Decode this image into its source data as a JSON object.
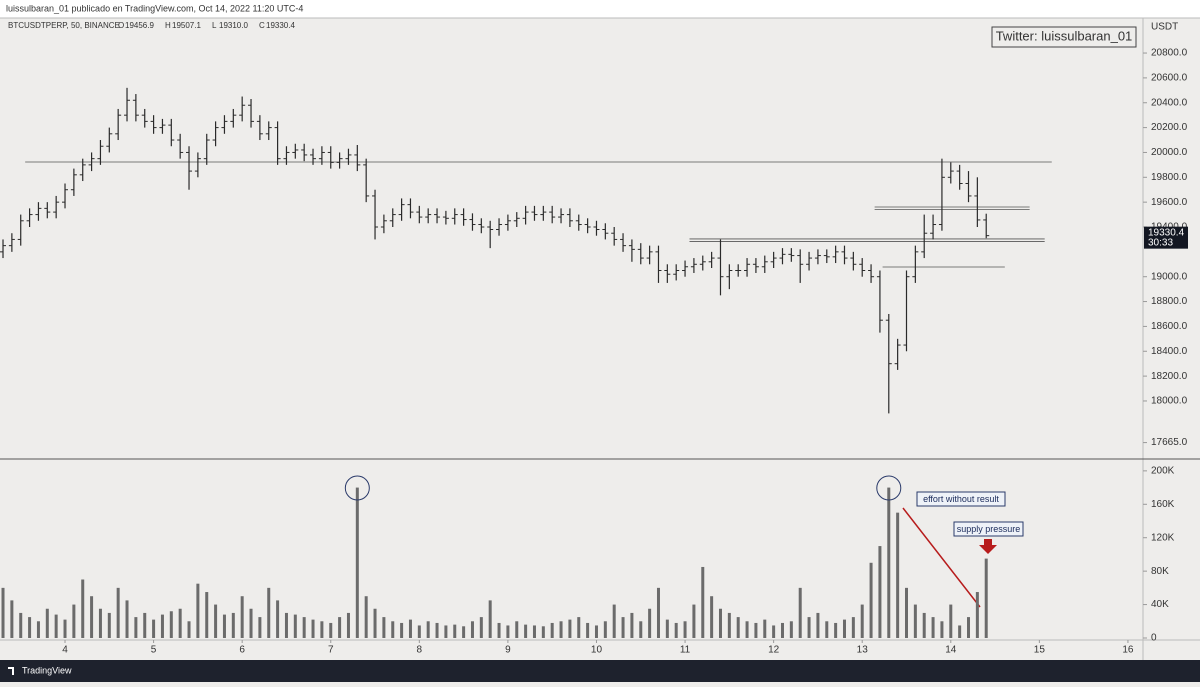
{
  "header": {
    "title": "luissulbaran_01 publicado en TradingView.com, Oct 14, 2022 11:20 UTC-4"
  },
  "footer": {
    "brand": "TradingView"
  },
  "chart_data": {
    "type": "ohlc",
    "symbol": "BTCUSDTPERP, 50, BINANCE",
    "ohlc_legend": [
      {
        "key": "O",
        "value": "19456.9"
      },
      {
        "key": "H",
        "value": "19507.1"
      },
      {
        "key": "L",
        "value": "19310.0"
      },
      {
        "key": "C",
        "value": "19330.4"
      }
    ],
    "watermark": "Twitter: luissulbaran_01",
    "currency": "USDT",
    "last_price_label": "19330.4",
    "countdown": "30:33",
    "bar_color": "#2a2a2a",
    "volume_color": "#6b6b6b",
    "x": [
      3.3,
      3.4,
      3.5,
      3.6,
      3.7,
      3.8,
      3.9,
      4.0,
      4.1,
      4.2,
      4.3,
      4.4,
      4.5,
      4.6,
      4.7,
      4.8,
      4.9,
      5.0,
      5.1,
      5.2,
      5.3,
      5.4,
      5.5,
      5.6,
      5.7,
      5.8,
      5.9,
      6.0,
      6.1,
      6.2,
      6.3,
      6.4,
      6.5,
      6.6,
      6.7,
      6.8,
      6.9,
      7.0,
      7.1,
      7.2,
      7.3,
      7.4,
      7.5,
      7.6,
      7.7,
      7.8,
      7.9,
      8.0,
      8.1,
      8.2,
      8.3,
      8.4,
      8.5,
      8.6,
      8.7,
      8.8,
      8.9,
      9.0,
      9.1,
      9.2,
      9.3,
      9.4,
      9.5,
      9.6,
      9.7,
      9.8,
      9.9,
      10.0,
      10.1,
      10.2,
      10.3,
      10.4,
      10.5,
      10.6,
      10.7,
      10.8,
      10.9,
      11.0,
      11.1,
      11.2,
      11.3,
      11.4,
      11.5,
      11.6,
      11.7,
      11.8,
      11.9,
      12.0,
      12.1,
      12.2,
      12.3,
      12.4,
      12.5,
      12.6,
      12.7,
      12.8,
      12.9,
      13.0,
      13.1,
      13.2,
      13.3,
      13.4,
      13.5,
      13.6,
      13.7,
      13.8,
      13.9,
      14.0,
      14.1,
      14.2,
      14.3,
      14.4
    ],
    "open": [
      19200,
      19250,
      19300,
      19450,
      19500,
      19550,
      19520,
      19600,
      19700,
      19820,
      19900,
      19950,
      20050,
      20150,
      20300,
      20420,
      20300,
      20250,
      20200,
      20220,
      20100,
      20000,
      19850,
      19950,
      20100,
      20200,
      20250,
      20300,
      20380,
      20250,
      20150,
      20200,
      19950,
      20000,
      20020,
      19980,
      19950,
      20000,
      19920,
      19950,
      19980,
      19900,
      19650,
      19400,
      19450,
      19500,
      19580,
      19520,
      19480,
      19500,
      19480,
      19470,
      19500,
      19460,
      19420,
      19400,
      19380,
      19420,
      19450,
      19470,
      19520,
      19500,
      19520,
      19480,
      19500,
      19450,
      19420,
      19400,
      19380,
      19350,
      19300,
      19250,
      19220,
      19150,
      19200,
      19050,
      19020,
      19050,
      19080,
      19100,
      19120,
      19150,
      19000,
      19050,
      19050,
      19100,
      19080,
      19120,
      19150,
      19180,
      19170,
      19100,
      19150,
      19170,
      19160,
      19200,
      19150,
      19100,
      19050,
      19000,
      18650,
      18300,
      18450,
      19000,
      19200,
      19350,
      19420,
      19800,
      19850,
      19750,
      19650,
      19456.9
    ],
    "high": [
      19300,
      19350,
      19500,
      19550,
      19600,
      19600,
      19650,
      19750,
      19870,
      19950,
      20000,
      20100,
      20200,
      20350,
      20520,
      20470,
      20350,
      20300,
      20270,
      20270,
      20150,
      20050,
      20000,
      20150,
      20250,
      20300,
      20350,
      20450,
      20430,
      20300,
      20250,
      20250,
      20050,
      20070,
      20070,
      20030,
      20050,
      20050,
      20000,
      20030,
      20060,
      19950,
      19700,
      19500,
      19550,
      19630,
      19630,
      19570,
      19550,
      19550,
      19530,
      19550,
      19550,
      19510,
      19470,
      19450,
      19470,
      19500,
      19520,
      19570,
      19570,
      19570,
      19570,
      19550,
      19550,
      19500,
      19470,
      19450,
      19430,
      19400,
      19350,
      19300,
      19270,
      19250,
      19250,
      19100,
      19100,
      19130,
      19150,
      19170,
      19200,
      19300,
      19100,
      19100,
      19150,
      19150,
      19170,
      19200,
      19230,
      19230,
      19220,
      19200,
      19220,
      19220,
      19250,
      19250,
      19200,
      19150,
      19100,
      19050,
      18700,
      18500,
      19050,
      19250,
      19500,
      19500,
      19950,
      19920,
      19900,
      19850,
      19800,
      19507.1
    ],
    "low": [
      19150,
      19200,
      19250,
      19400,
      19450,
      19470,
      19470,
      19550,
      19650,
      19770,
      19850,
      19900,
      20000,
      20100,
      20250,
      20250,
      20200,
      20150,
      20150,
      20050,
      19950,
      19700,
      19800,
      19900,
      20050,
      20150,
      20200,
      20250,
      20200,
      20100,
      20100,
      19900,
      19900,
      19950,
      19930,
      19900,
      19900,
      19870,
      19870,
      19900,
      19850,
      19600,
      19300,
      19350,
      19400,
      19450,
      19470,
      19430,
      19430,
      19430,
      19420,
      19420,
      19410,
      19370,
      19350,
      19230,
      19330,
      19370,
      19400,
      19420,
      19450,
      19450,
      19430,
      19430,
      19400,
      19370,
      19350,
      19330,
      19300,
      19250,
      19200,
      19120,
      19100,
      19100,
      18950,
      18950,
      18970,
      19000,
      19030,
      19050,
      19070,
      18850,
      18900,
      19000,
      19000,
      19030,
      19030,
      19070,
      19100,
      19120,
      18950,
      19050,
      19100,
      19110,
      19110,
      19100,
      19050,
      19000,
      18950,
      18550,
      17900,
      18250,
      18400,
      18950,
      19150,
      19300,
      19370,
      19750,
      19700,
      19600,
      19400,
      19310
    ],
    "close": [
      19250,
      19300,
      19450,
      19500,
      19550,
      19520,
      19600,
      19700,
      19820,
      19900,
      19950,
      20050,
      20150,
      20300,
      20420,
      20300,
      20250,
      20200,
      20220,
      20100,
      20000,
      19850,
      19950,
      20100,
      20200,
      20250,
      20300,
      20380,
      20250,
      20150,
      20200,
      19950,
      20000,
      20020,
      19980,
      19950,
      20000,
      19920,
      19950,
      19980,
      19900,
      19650,
      19400,
      19450,
      19500,
      19580,
      19520,
      19480,
      19500,
      19480,
      19470,
      19500,
      19460,
      19420,
      19400,
      19380,
      19420,
      19450,
      19470,
      19520,
      19500,
      19520,
      19480,
      19500,
      19450,
      19420,
      19400,
      19380,
      19350,
      19300,
      19250,
      19220,
      19150,
      19200,
      19050,
      19020,
      19050,
      19080,
      19100,
      19120,
      19150,
      19000,
      19050,
      19050,
      19100,
      19080,
      19120,
      19150,
      19180,
      19170,
      19100,
      19150,
      19170,
      19160,
      19200,
      19150,
      19100,
      19050,
      19000,
      18650,
      18300,
      18450,
      19000,
      19200,
      19350,
      19420,
      19800,
      19850,
      19750,
      19650,
      19456.9,
      19330.4
    ],
    "volume": [
      60000,
      45000,
      30000,
      25000,
      20000,
      35000,
      28000,
      22000,
      40000,
      70000,
      50000,
      35000,
      30000,
      60000,
      45000,
      25000,
      30000,
      22000,
      28000,
      32000,
      35000,
      20000,
      65000,
      55000,
      40000,
      28000,
      30000,
      50000,
      35000,
      25000,
      60000,
      45000,
      30000,
      28000,
      25000,
      22000,
      20000,
      18000,
      25000,
      30000,
      180000,
      50000,
      35000,
      25000,
      20000,
      18000,
      22000,
      15000,
      20000,
      18000,
      15000,
      16000,
      14000,
      20000,
      25000,
      45000,
      18000,
      15000,
      20000,
      16000,
      15000,
      14000,
      18000,
      20000,
      22000,
      25000,
      18000,
      15000,
      20000,
      40000,
      25000,
      30000,
      20000,
      35000,
      60000,
      22000,
      18000,
      20000,
      40000,
      85000,
      50000,
      35000,
      30000,
      25000,
      20000,
      18000,
      22000,
      15000,
      18000,
      20000,
      60000,
      25000,
      30000,
      20000,
      18000,
      22000,
      25000,
      40000,
      90000,
      110000,
      180000,
      150000,
      60000,
      40000,
      30000,
      25000,
      20000,
      40000,
      15000,
      25000,
      55000,
      95000
    ],
    "levels": [
      {
        "price": 19923,
        "x": [
          3.55,
          15.14
        ]
      },
      {
        "price": 19561,
        "x": [
          13.14,
          14.89
        ]
      },
      {
        "price": 19304,
        "x": [
          11.05,
          15.06
        ]
      },
      {
        "price": 19078,
        "x": [
          13.23,
          14.61
        ]
      }
    ],
    "xlim": [
      3.266,
      16.17
    ],
    "xticks": [
      4,
      5,
      6,
      7,
      8,
      9,
      10,
      11,
      12,
      13,
      14,
      15,
      16
    ],
    "ylim": [
      17541,
      21082
    ],
    "yticks": [
      {
        "value": 17665,
        "label": "17665.0"
      },
      {
        "value": 18000,
        "label": "18000.0"
      },
      {
        "value": 18200,
        "label": "18200.0"
      },
      {
        "value": 18400,
        "label": "18400.0"
      },
      {
        "value": 18600,
        "label": "18600.0"
      },
      {
        "value": 18800,
        "label": "18800.0"
      },
      {
        "value": 19000,
        "label": "19000.0"
      },
      {
        "value": 19400,
        "label": "19400.0"
      },
      {
        "value": 19600,
        "label": "19600.0"
      },
      {
        "value": 19800,
        "label": "19800.0"
      },
      {
        "value": 20000,
        "label": "20000.0"
      },
      {
        "value": 20200,
        "label": "20200.0"
      },
      {
        "value": 20400,
        "label": "20400.0"
      },
      {
        "value": 20600,
        "label": "20600.0"
      },
      {
        "value": 20800,
        "label": "20800.0"
      }
    ],
    "y2lim": [
      -2400,
      213000
    ],
    "y2ticks": [
      0,
      {
        "value": 40000,
        "label": "40K"
      },
      {
        "value": 80000,
        "label": "80K"
      },
      {
        "value": 120000,
        "label": "120K"
      },
      {
        "value": 160000,
        "label": "160K"
      },
      {
        "value": 200000,
        "label": "200K"
      }
    ],
    "annotations": [
      "effort without result",
      "supply pressure"
    ],
    "circled_bars": [
      40,
      100
    ]
  }
}
